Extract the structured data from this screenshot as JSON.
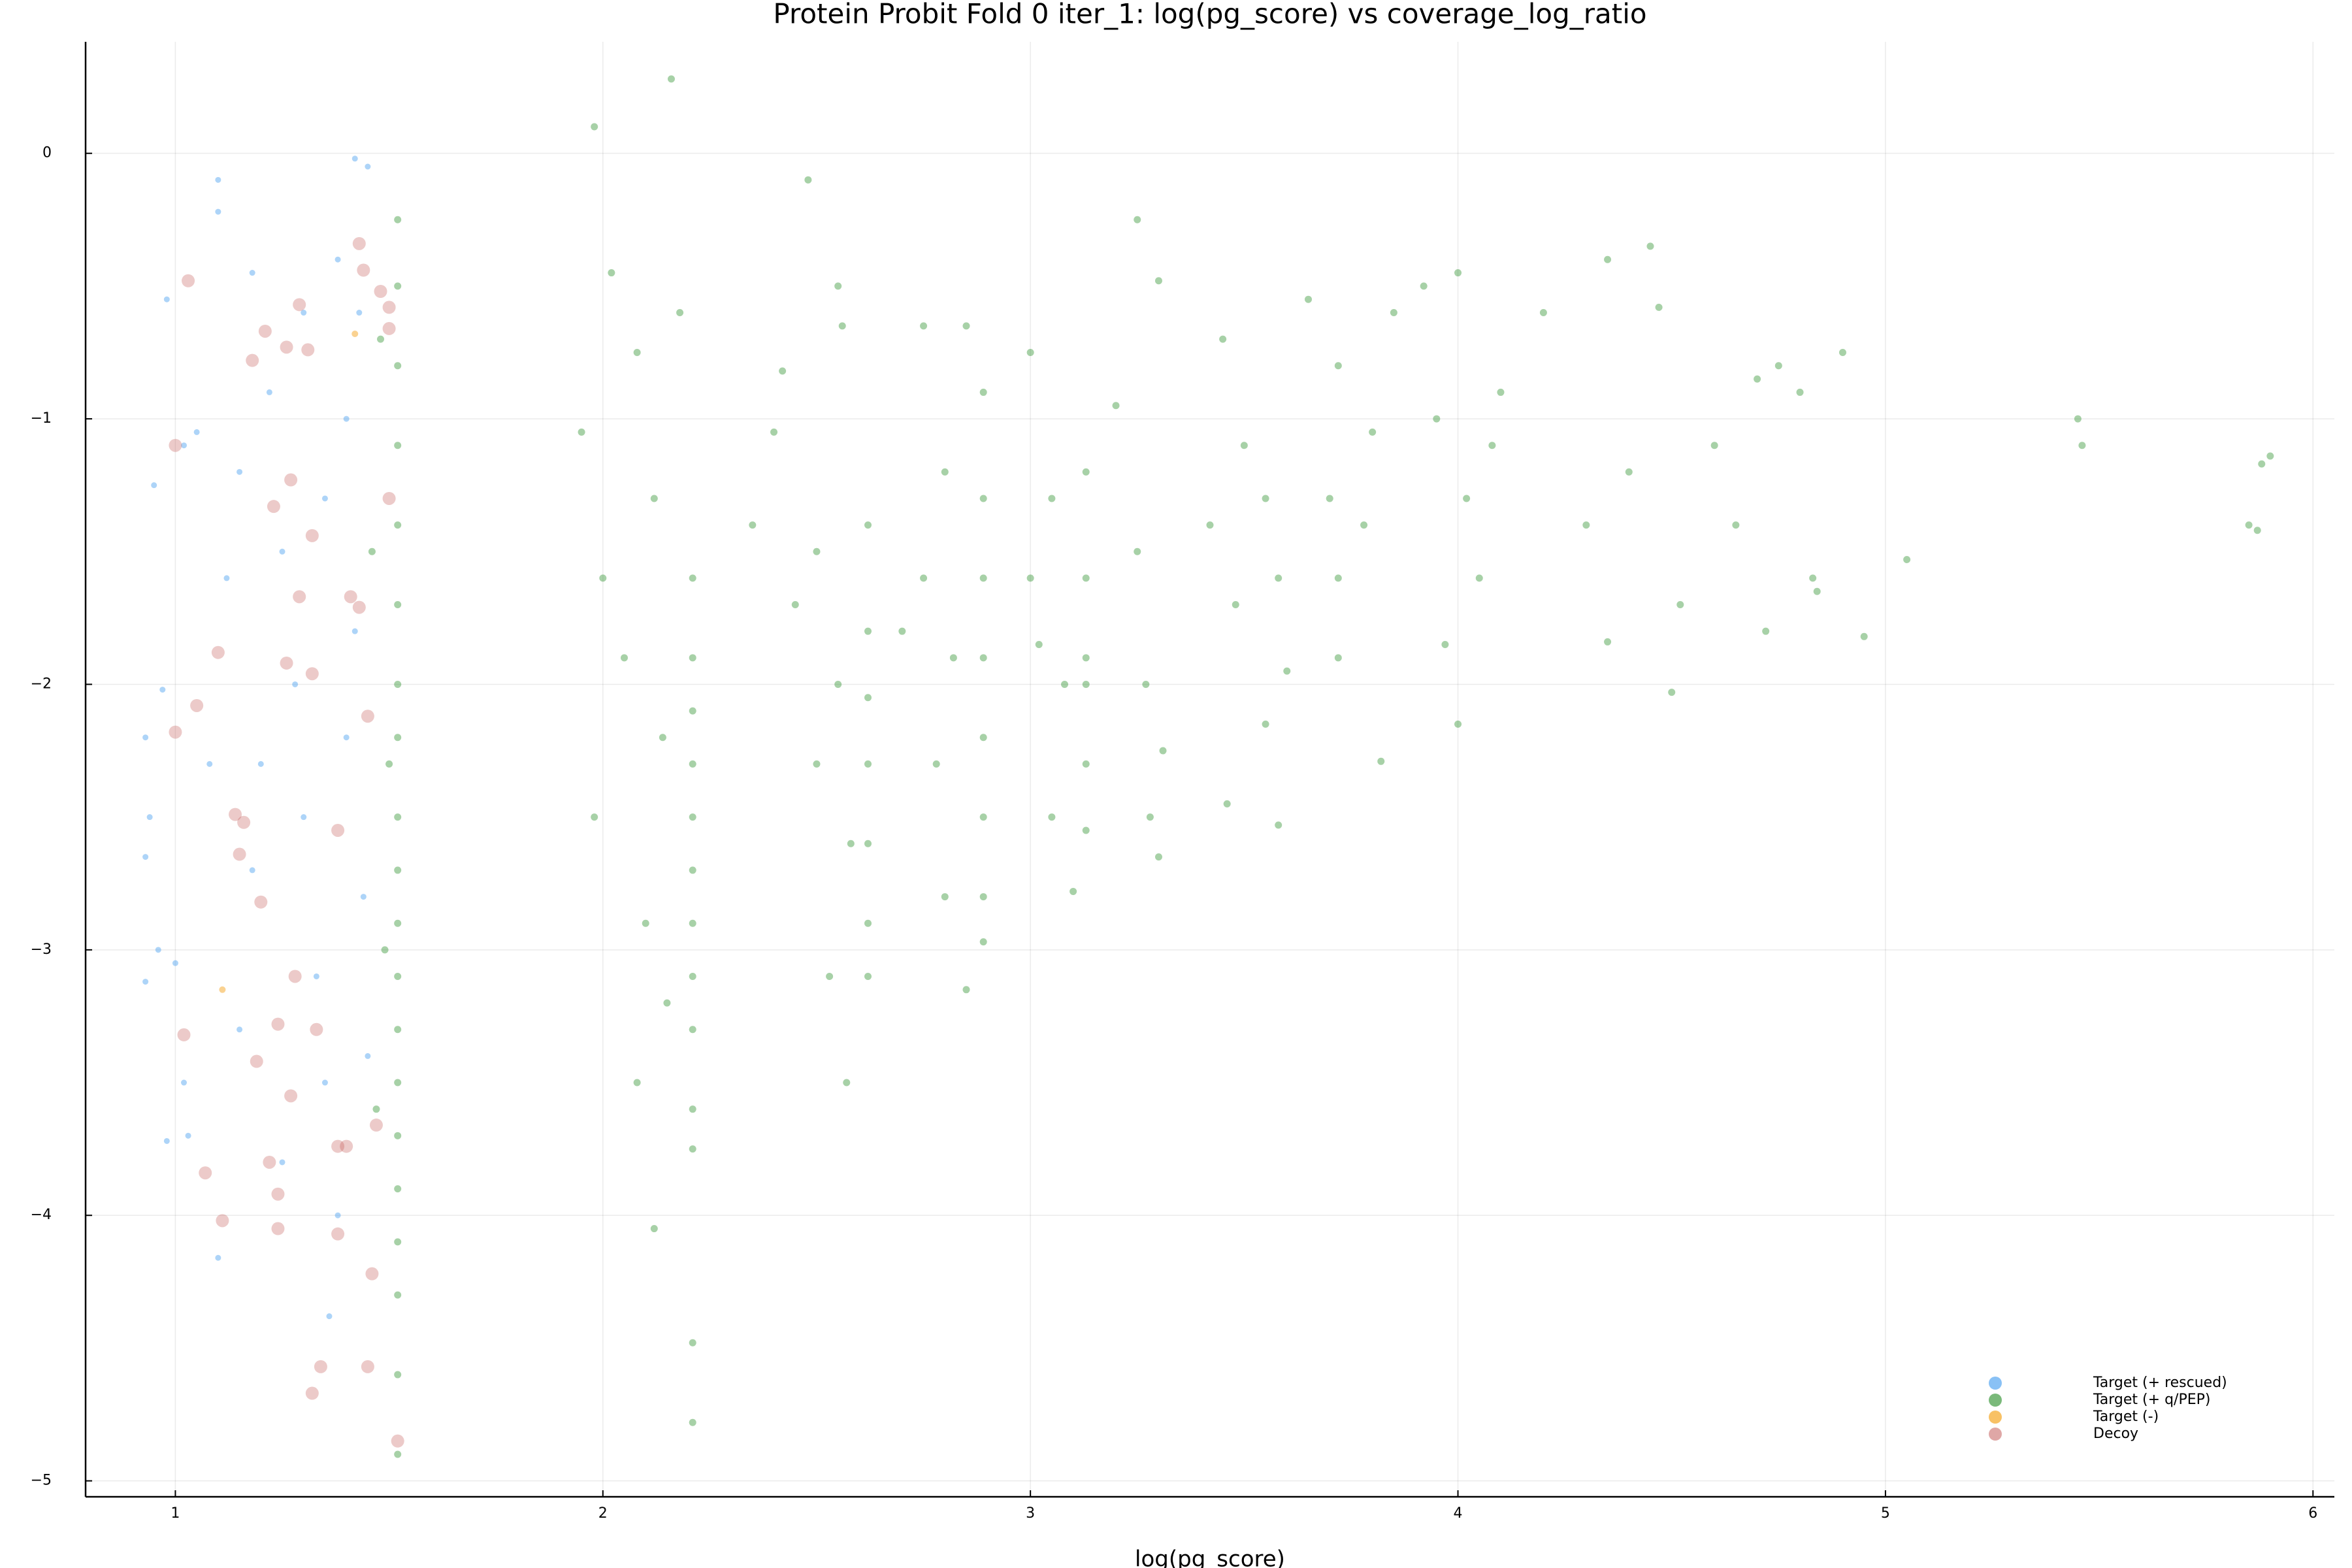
{
  "chart_data": {
    "type": "scatter",
    "title": "Protein Probit Fold 0 iter_1: log(pg_score) vs coverage_log_ratio",
    "x_label": "log(pg_score)",
    "xlim": [
      0.79,
      6.05
    ],
    "ylim": [
      -5.06,
      0.42
    ],
    "xticks": [
      1,
      2,
      3,
      4,
      5,
      6
    ],
    "yticks": [
      0,
      {
        "value": -1,
        "label": "−1"
      },
      {
        "value": -2,
        "label": "−2"
      },
      {
        "value": -3,
        "label": "−3"
      },
      {
        "value": -4,
        "label": "−4"
      },
      {
        "value": -5,
        "label": "−5"
      }
    ],
    "grid": true,
    "legend": "lower right",
    "series": [
      {
        "name": "Target (+ rescued)",
        "color": "#4a9ff0",
        "opacity": 0.45,
        "size": 4.5,
        "x": [
          1.1,
          1.1,
          1.42,
          1.45,
          0.98,
          1.02,
          1.05,
          0.95,
          0.97,
          0.93,
          0.94,
          0.93,
          0.96,
          0.93,
          1.0,
          1.02,
          0.98,
          1.03,
          1.1,
          1.15,
          1.18,
          1.2,
          1.12,
          1.18,
          1.22,
          1.25,
          1.28,
          1.3,
          1.33,
          1.35,
          1.36,
          1.38,
          1.4,
          1.42,
          1.4,
          1.44,
          1.45,
          1.38,
          1.3,
          1.08,
          1.15,
          1.25,
          1.43,
          1.35
        ],
        "y": [
          -0.1,
          -0.22,
          -0.02,
          -0.05,
          -0.55,
          -1.1,
          -1.05,
          -1.25,
          -2.02,
          -2.2,
          -2.5,
          -2.65,
          -3.0,
          -3.12,
          -3.05,
          -3.5,
          -3.72,
          -3.7,
          -4.16,
          -3.3,
          -2.7,
          -2.3,
          -1.6,
          -0.45,
          -0.9,
          -1.5,
          -2.0,
          -2.5,
          -3.1,
          -3.5,
          -4.38,
          -0.4,
          -1.0,
          -1.8,
          -2.2,
          -2.8,
          -3.4,
          -4.0,
          -0.6,
          -2.3,
          -1.2,
          -3.8,
          -0.6,
          -1.3
        ]
      },
      {
        "name": "Target (+ q/PEP)",
        "color": "#228b22",
        "opacity": 0.4,
        "size": 5.5,
        "x": [
          1.52,
          1.52,
          1.52,
          1.52,
          1.52,
          1.52,
          1.52,
          1.52,
          1.52,
          1.52,
          1.52,
          1.52,
          1.52,
          1.52,
          1.52,
          1.52,
          1.52,
          1.52,
          1.52,
          1.52,
          1.48,
          1.46,
          1.5,
          1.49,
          1.47,
          1.95,
          2.02,
          2.08,
          2.12,
          2.05,
          1.98,
          2.1,
          2.15,
          2.08,
          2.12,
          2.18,
          2.16,
          1.98,
          2.0,
          2.14,
          2.21,
          2.21,
          2.21,
          2.21,
          2.21,
          2.21,
          2.21,
          2.21,
          2.21,
          2.21,
          2.21,
          2.21,
          2.21,
          2.48,
          2.55,
          2.4,
          2.5,
          2.45,
          2.55,
          2.5,
          2.58,
          2.53,
          2.57,
          2.56,
          2.42,
          2.35,
          2.62,
          2.62,
          2.62,
          2.62,
          2.62,
          2.62,
          2.62,
          2.75,
          2.85,
          2.8,
          2.75,
          2.82,
          2.78,
          2.8,
          2.85,
          2.7,
          2.89,
          2.89,
          2.89,
          2.89,
          2.89,
          2.89,
          2.89,
          2.89,
          3.0,
          3.05,
          3.0,
          3.08,
          3.05,
          3.1,
          3.02,
          3.13,
          3.13,
          3.13,
          3.13,
          3.13,
          3.13,
          3.25,
          3.3,
          3.2,
          3.25,
          3.27,
          3.28,
          3.3,
          3.31,
          3.45,
          3.5,
          3.42,
          3.48,
          3.46,
          3.55,
          3.58,
          3.6,
          3.58,
          3.55,
          3.65,
          3.72,
          3.7,
          3.72,
          3.72,
          3.8,
          3.82,
          3.78,
          3.85,
          3.92,
          4.0,
          3.95,
          4.02,
          4.05,
          4.0,
          3.97,
          4.1,
          4.08,
          4.2,
          4.35,
          4.45,
          4.47,
          4.3,
          4.4,
          4.35,
          4.52,
          4.5,
          4.6,
          4.65,
          4.7,
          4.75,
          4.8,
          4.72,
          4.83,
          4.9,
          4.95,
          5.05,
          4.84,
          5.45,
          5.46,
          5.85,
          5.87,
          5.88,
          5.9
        ],
        "y": [
          -0.25,
          -0.5,
          -0.8,
          -1.1,
          -1.4,
          -1.7,
          -2.0,
          -2.2,
          -2.5,
          -2.7,
          -2.9,
          -3.1,
          -3.3,
          -3.5,
          -3.7,
          -3.9,
          -4.1,
          -4.3,
          -4.6,
          -4.9,
          -0.7,
          -1.5,
          -2.3,
          -3.0,
          -3.6,
          -1.05,
          -0.45,
          -0.75,
          -1.3,
          -1.9,
          -2.5,
          -2.9,
          -3.2,
          -3.5,
          -4.05,
          -0.6,
          0.28,
          0.1,
          -1.6,
          -2.2,
          -1.6,
          -1.9,
          -2.1,
          -2.3,
          -2.5,
          -2.7,
          -2.9,
          -3.1,
          -3.3,
          -3.6,
          -3.75,
          -4.48,
          -4.78,
          -0.1,
          -0.5,
          -1.05,
          -1.5,
          -1.7,
          -2.0,
          -2.3,
          -2.6,
          -3.1,
          -3.5,
          -0.65,
          -0.82,
          -1.4,
          -1.4,
          -1.8,
          -2.05,
          -2.3,
          -2.6,
          -2.9,
          -3.1,
          -0.65,
          -0.65,
          -1.2,
          -1.6,
          -1.9,
          -2.3,
          -2.8,
          -3.15,
          -1.8,
          -0.9,
          -1.3,
          -1.6,
          -1.9,
          -2.2,
          -2.5,
          -2.8,
          -2.97,
          -0.75,
          -1.3,
          -1.6,
          -2.0,
          -2.5,
          -2.78,
          -1.85,
          -1.2,
          -1.6,
          -1.9,
          -2.0,
          -2.3,
          -2.55,
          -0.25,
          -0.48,
          -0.95,
          -1.5,
          -2.0,
          -2.5,
          -2.65,
          -2.25,
          -0.7,
          -1.1,
          -1.4,
          -1.7,
          -2.45,
          -1.3,
          -1.6,
          -1.95,
          -2.53,
          -2.15,
          -0.55,
          -0.8,
          -1.3,
          -1.6,
          -1.9,
          -1.05,
          -2.29,
          -1.4,
          -0.6,
          -0.5,
          -0.45,
          -1.0,
          -1.3,
          -1.6,
          -2.15,
          -1.85,
          -0.9,
          -1.1,
          -0.6,
          -0.4,
          -0.35,
          -0.58,
          -1.4,
          -1.2,
          -1.84,
          -1.7,
          -2.03,
          -1.1,
          -1.4,
          -0.85,
          -0.8,
          -0.9,
          -1.8,
          -1.6,
          -0.75,
          -1.82,
          -1.53,
          -1.65,
          -1.0,
          -1.1,
          -1.4,
          -1.42,
          -1.17,
          -1.14
        ]
      },
      {
        "name": "Target (-)",
        "color": "#f5a623",
        "opacity": 0.5,
        "size": 5,
        "x": [
          1.11,
          1.42
        ],
        "y": [
          -3.15,
          -0.68
        ]
      },
      {
        "name": "Decoy",
        "color": "#c0504d",
        "opacity": 0.3,
        "size": 10,
        "x": [
          1.03,
          1.0,
          1.1,
          1.05,
          1.0,
          1.02,
          1.07,
          1.11,
          1.18,
          1.21,
          1.26,
          1.29,
          1.31,
          1.43,
          1.44,
          1.5,
          1.5,
          1.27,
          1.23,
          1.32,
          1.29,
          1.41,
          1.43,
          1.26,
          1.32,
          1.14,
          1.16,
          1.15,
          1.2,
          1.24,
          1.28,
          1.33,
          1.19,
          1.22,
          1.24,
          1.27,
          1.38,
          1.4,
          1.38,
          1.34,
          1.32,
          1.45,
          1.46,
          1.52,
          1.24,
          1.47,
          1.5,
          1.48,
          1.45,
          1.38
        ],
        "y": [
          -0.48,
          -1.1,
          -1.88,
          -2.08,
          -2.18,
          -3.32,
          -3.84,
          -4.02,
          -0.78,
          -0.67,
          -0.73,
          -0.57,
          -0.74,
          -0.34,
          -0.44,
          -0.58,
          -0.66,
          -1.23,
          -1.33,
          -1.44,
          -1.67,
          -1.67,
          -1.71,
          -1.92,
          -1.96,
          -2.49,
          -2.52,
          -2.64,
          -2.82,
          -3.28,
          -3.1,
          -3.3,
          -3.42,
          -3.8,
          -3.92,
          -3.55,
          -3.74,
          -3.74,
          -4.07,
          -4.57,
          -4.67,
          -4.57,
          -4.22,
          -4.85,
          -4.05,
          -3.66,
          -1.3,
          -0.52,
          -2.12,
          -2.55
        ]
      }
    ]
  }
}
